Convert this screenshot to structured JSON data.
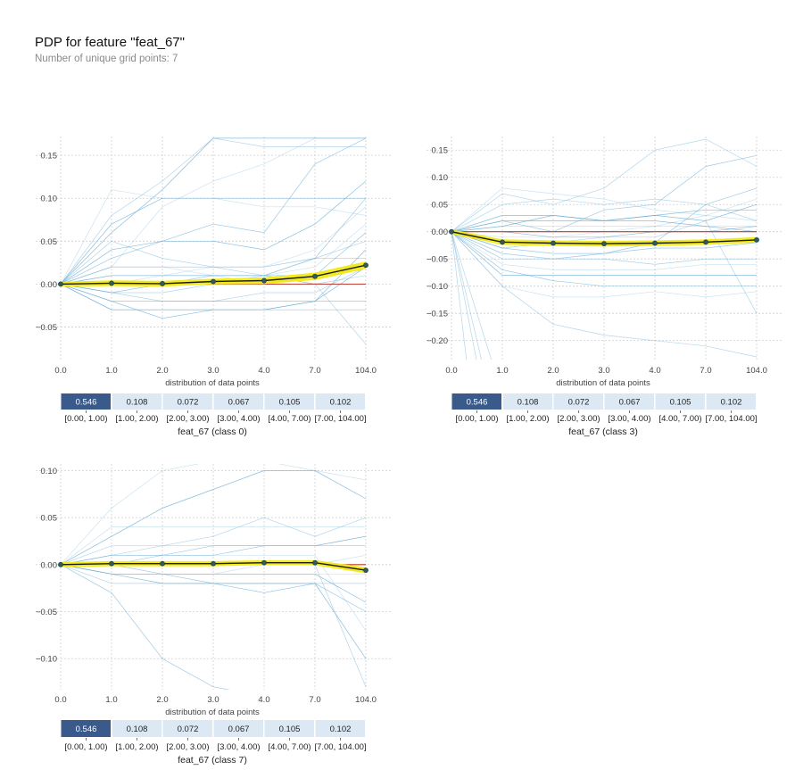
{
  "header": {
    "title": "PDP for feature \"feat_67\"",
    "subtitle": "Number of unique grid points: 7"
  },
  "colors": {
    "pdp_line": "#1a1a1a",
    "pdp_band": "#f2ea1e",
    "pdp_marker": "#2e5c5c",
    "baseline": "#c0392b",
    "ice_lines": "#6aaed6",
    "dist_dark": "#3a5a8c",
    "dist_light": "#dce9f5"
  },
  "chart_data": [
    {
      "type": "line",
      "title": "",
      "xlabel": "feat_67 (class 0)",
      "dist_label": "distribution of data points",
      "x_ticks": [
        "0.0",
        "1.0",
        "2.0",
        "3.0",
        "4.0",
        "7.0",
        "104.0"
      ],
      "ylim": [
        -0.088,
        0.172
      ],
      "y_ticks": [
        -0.05,
        0.0,
        0.05,
        0.1,
        0.15
      ],
      "y_tick_labels": [
        "−0.05",
        "0.00",
        "0.05",
        "0.10",
        "0.15"
      ],
      "pdp": [
        0.0,
        0.001,
        0.0005,
        0.003,
        0.004,
        0.009,
        0.022
      ],
      "pdp_upper": [
        0.0015,
        0.003,
        0.0025,
        0.005,
        0.0065,
        0.012,
        0.025
      ],
      "pdp_lower": [
        -0.0015,
        -0.001,
        -0.0015,
        0.001,
        0.0015,
        0.006,
        0.019
      ],
      "ice": [
        [
          0,
          0.11,
          0.1,
          0.1,
          0.09,
          0.09,
          0.08
        ],
        [
          0,
          0.08,
          0.12,
          0.17,
          0.16,
          0.16,
          0.16
        ],
        [
          0,
          0.03,
          0.05,
          0.07,
          0.06,
          0.14,
          0.17
        ],
        [
          0,
          0.04,
          0.05,
          0.05,
          0.04,
          0.07,
          0.12
        ],
        [
          0,
          0.01,
          0.01,
          0.01,
          0.01,
          0.02,
          0.07
        ],
        [
          0,
          0.01,
          0.01,
          0.01,
          0.01,
          0.0,
          0.01
        ],
        [
          0,
          -0.02,
          -0.02,
          -0.02,
          -0.02,
          -0.02,
          -0.02
        ],
        [
          0,
          -0.03,
          -0.03,
          -0.03,
          -0.03,
          -0.02,
          0.04
        ],
        [
          0,
          0.0,
          0.0,
          0.0,
          0.0,
          0.0,
          0.0
        ],
        [
          0,
          -0.01,
          -0.01,
          0.0,
          0.01,
          0.03,
          0.05
        ],
        [
          0,
          0.02,
          0.02,
          0.02,
          0.02,
          0.03,
          0.1
        ],
        [
          0,
          0.06,
          0.11,
          0.17,
          0.17,
          0.17,
          0.17
        ],
        [
          0,
          0.02,
          0.09,
          0.12,
          0.14,
          0.17,
          0.17
        ],
        [
          0,
          0.05,
          0.03,
          0.02,
          0.01,
          0.0,
          -0.07
        ],
        [
          0,
          -0.01,
          0.0,
          0.01,
          0.01,
          0.01,
          0.06
        ],
        [
          0,
          -0.02,
          -0.04,
          -0.03,
          -0.03,
          -0.02,
          0.02
        ],
        [
          0,
          0.0,
          0.01,
          0.02,
          0.02,
          0.04,
          0.09
        ],
        [
          0,
          0.01,
          0.01,
          0.01,
          0.01,
          0.03,
          0.03
        ],
        [
          0,
          -0.03,
          -0.03,
          -0.03,
          -0.03,
          -0.03,
          -0.03
        ],
        [
          0,
          0.07,
          0.1,
          0.1,
          0.1,
          0.1,
          0.1
        ],
        [
          0,
          0.02,
          0.02,
          0.01,
          0.0,
          0.0,
          0.0
        ],
        [
          0,
          -0.01,
          -0.02,
          -0.02,
          -0.01,
          -0.01,
          0.02
        ]
      ],
      "dist_labels": [
        "[0.00, 1.00)",
        "[1.00, 2.00)",
        "[2.00, 3.00)",
        "[3.00, 4.00)",
        "[4.00, 7.00)",
        "[7.00, 104.00]"
      ],
      "dist_values": [
        "0.546",
        "0.108",
        "0.072",
        "0.067",
        "0.105",
        "0.102"
      ]
    },
    {
      "type": "line",
      "title": "",
      "xlabel": "feat_67 (class 3)",
      "dist_label": "distribution of data points",
      "x_ticks": [
        "0.0",
        "1.0",
        "2.0",
        "3.0",
        "4.0",
        "7.0",
        "104.0"
      ],
      "ylim": [
        -0.235,
        0.175
      ],
      "y_ticks": [
        -0.2,
        -0.15,
        -0.1,
        -0.05,
        0.0,
        0.05,
        0.1,
        0.15
      ],
      "y_tick_labels": [
        "−0.20",
        "−0.15",
        "−0.10",
        "−0.05",
        "0.00",
        "0.05",
        "0.10",
        "0.15"
      ],
      "pdp": [
        0.0,
        -0.019,
        -0.021,
        -0.022,
        -0.021,
        -0.019,
        -0.015
      ],
      "pdp_upper": [
        0.002,
        -0.016,
        -0.018,
        -0.019,
        -0.018,
        -0.016,
        -0.012
      ],
      "pdp_lower": [
        -0.002,
        -0.022,
        -0.024,
        -0.025,
        -0.024,
        -0.022,
        -0.018
      ],
      "ice": [
        [
          0,
          0.08,
          0.07,
          0.06,
          0.04,
          0.03,
          0.02
        ],
        [
          0,
          0.07,
          0.05,
          0.08,
          0.15,
          0.17,
          0.12
        ],
        [
          0,
          0.02,
          0.0,
          0.04,
          0.05,
          0.12,
          0.14
        ],
        [
          0,
          0.03,
          0.03,
          0.02,
          0.03,
          0.02,
          0.05
        ],
        [
          0,
          0.01,
          0.01,
          0.01,
          0.01,
          0.01,
          0.01
        ],
        [
          0,
          -0.02,
          -0.02,
          -0.02,
          -0.02,
          -0.02,
          -0.02
        ],
        [
          0,
          -0.05,
          -0.05,
          -0.05,
          -0.06,
          -0.05,
          -0.05
        ],
        [
          0,
          -0.08,
          -0.08,
          -0.08,
          -0.08,
          -0.08,
          -0.08
        ],
        [
          0,
          -0.1,
          -0.12,
          -0.12,
          -0.11,
          -0.12,
          -0.11
        ],
        [
          0,
          -0.1,
          -0.17,
          -0.19,
          -0.2,
          -0.21,
          -0.23
        ],
        [
          0,
          -0.03,
          -0.04,
          -0.04,
          -0.03,
          -0.03,
          -0.02
        ],
        [
          0,
          0.0,
          -0.01,
          -0.01,
          0.0,
          0.0,
          0.01
        ],
        [
          0,
          -0.06,
          -0.07,
          -0.07,
          -0.07,
          -0.06,
          -0.06
        ],
        [
          0,
          0.05,
          0.06,
          0.05,
          0.06,
          0.05,
          0.02
        ],
        [
          0,
          -0.04,
          -0.05,
          -0.04,
          -0.02,
          0.05,
          0.08
        ],
        [
          0,
          0.02,
          0.02,
          0.02,
          0.03,
          0.04,
          0.04
        ],
        [
          0,
          -0.01,
          -0.01,
          0.0,
          0.01,
          0.03,
          0.06
        ],
        [
          0,
          -0.03,
          -0.02,
          -0.01,
          -0.01,
          0.02,
          -0.15
        ],
        [
          0,
          -0.07,
          -0.09,
          -0.1,
          -0.1,
          -0.1,
          -0.1
        ],
        [
          0,
          0.01,
          0.03,
          0.02,
          0.02,
          0.01,
          0.0
        ]
      ],
      "ice_extra": [
        [
          [
            0,
            0
          ],
          [
            0.8,
            -0.24
          ]
        ],
        [
          [
            0,
            0
          ],
          [
            0.5,
            -0.24
          ]
        ],
        [
          [
            0,
            0
          ],
          [
            0.3,
            -0.24
          ]
        ],
        [
          [
            0,
            0
          ],
          [
            0.6,
            -0.24
          ]
        ]
      ],
      "dist_labels": [
        "[0.00, 1.00)",
        "[1.00, 2.00)",
        "[2.00, 3.00)",
        "[3.00, 4.00)",
        "[4.00, 7.00)",
        "[7.00, 104.00]"
      ],
      "dist_values": [
        "0.546",
        "0.108",
        "0.072",
        "0.067",
        "0.105",
        "0.102"
      ]
    },
    {
      "type": "line",
      "title": "",
      "xlabel": "feat_67 (class 7)",
      "dist_label": "distribution of data points",
      "x_ticks": [
        "0.0",
        "1.0",
        "2.0",
        "3.0",
        "4.0",
        "7.0",
        "104.0"
      ],
      "ylim": [
        -0.133,
        0.107
      ],
      "y_ticks": [
        -0.1,
        -0.05,
        0.0,
        0.05,
        0.1
      ],
      "y_tick_labels": [
        "−0.10",
        "−0.05",
        "0.00",
        "0.05",
        "0.10"
      ],
      "pdp": [
        0.0,
        0.001,
        0.001,
        0.001,
        0.002,
        0.002,
        -0.006
      ],
      "pdp_upper": [
        0.0015,
        0.0025,
        0.0025,
        0.0025,
        0.0035,
        0.0035,
        -0.004
      ],
      "pdp_lower": [
        -0.0015,
        -0.0005,
        -0.0005,
        -0.0005,
        0.0005,
        0.0005,
        -0.008
      ],
      "ice": [
        [
          0,
          0.06,
          0.1,
          0.11,
          0.11,
          0.1,
          0.09
        ],
        [
          0,
          0.02,
          0.02,
          0.03,
          0.05,
          0.03,
          0.05
        ],
        [
          0,
          0.01,
          0.01,
          0.02,
          0.02,
          0.02,
          0.03
        ],
        [
          0,
          0.0,
          0.0,
          0.0,
          0.0,
          0.0,
          0.0
        ],
        [
          0,
          -0.01,
          -0.01,
          -0.01,
          -0.01,
          -0.01,
          -0.01
        ],
        [
          0,
          -0.02,
          -0.02,
          -0.02,
          -0.02,
          -0.02,
          -0.02
        ],
        [
          0,
          -0.03,
          -0.1,
          -0.13,
          -0.14,
          -0.14,
          -0.14
        ],
        [
          0,
          -0.01,
          -0.02,
          -0.02,
          -0.02,
          -0.02,
          -0.1
        ],
        [
          0,
          0.01,
          0.01,
          0.01,
          0.01,
          0.01,
          -0.07
        ],
        [
          0,
          0.0,
          0.0,
          0.0,
          0.0,
          0.0,
          -0.13
        ],
        [
          0,
          0.0,
          0.01,
          0.01,
          0.02,
          0.02,
          0.02
        ],
        [
          0,
          -0.01,
          -0.01,
          -0.01,
          -0.01,
          -0.01,
          -0.04
        ],
        [
          0,
          0.04,
          0.04,
          0.04,
          0.04,
          0.04,
          0.04
        ],
        [
          0,
          0.01,
          0.02,
          0.02,
          0.02,
          0.02,
          0.03
        ],
        [
          0,
          0.0,
          -0.01,
          -0.02,
          -0.03,
          -0.02,
          -0.05
        ],
        [
          0,
          0.03,
          0.06,
          0.08,
          0.1,
          0.1,
          0.07
        ],
        [
          0,
          -0.01,
          -0.01,
          -0.01,
          0.0,
          0.0,
          0.01
        ]
      ],
      "dist_labels": [
        "[0.00, 1.00)",
        "[1.00, 2.00)",
        "[2.00, 3.00)",
        "[3.00, 4.00)",
        "[4.00, 7.00)",
        "[7.00, 104.00]"
      ],
      "dist_values": [
        "0.546",
        "0.108",
        "0.072",
        "0.067",
        "0.105",
        "0.102"
      ]
    }
  ]
}
